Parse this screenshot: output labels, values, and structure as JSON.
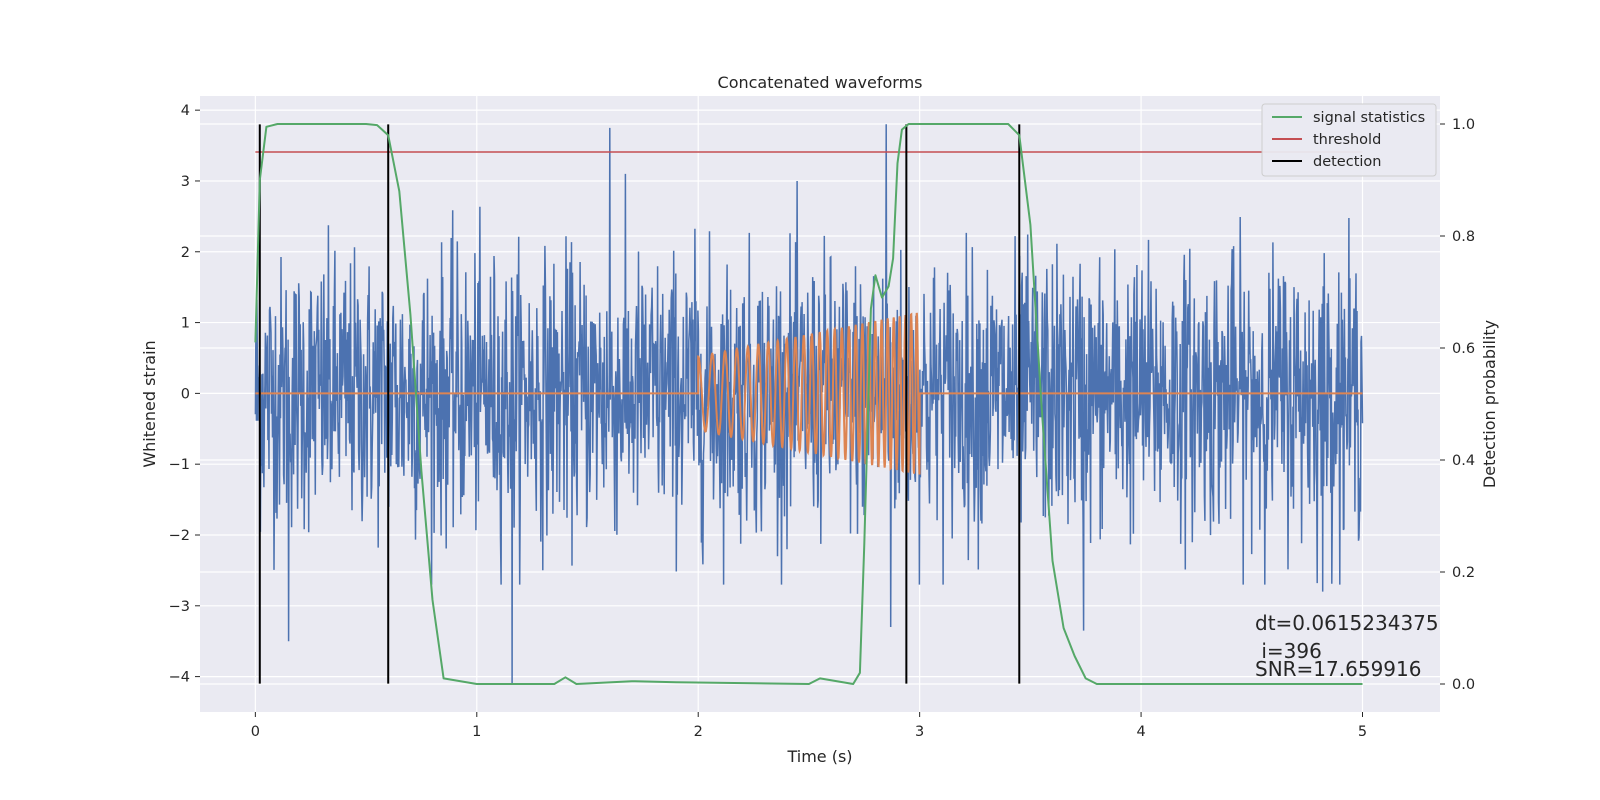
{
  "chart_data": {
    "type": "line",
    "title": "Concatenated waveforms",
    "xlabel": "Time (s)",
    "ylabel": "Whitened strain",
    "y2label": "Detection probability",
    "xlim": [
      -0.25,
      5.35
    ],
    "ylim": [
      -4.5,
      4.2
    ],
    "y2lim": [
      -0.05,
      1.05
    ],
    "xticks": [
      0,
      1,
      2,
      3,
      4,
      5
    ],
    "yticks": [
      -4,
      -3,
      -2,
      -1,
      0,
      1,
      2,
      3,
      4
    ],
    "y2ticks": [
      0.0,
      0.2,
      0.4,
      0.6,
      0.8,
      1.0
    ],
    "grid": true,
    "legend_position": "top-right",
    "legend": [
      {
        "name": "signal statistics",
        "color": "#55a868"
      },
      {
        "name": "threshold",
        "color": "#c44e52"
      },
      {
        "name": "detection",
        "color": "#000000"
      }
    ],
    "series": [
      {
        "name": "strain",
        "axis": "left",
        "color": "#4c72b0",
        "x_range": [
          0,
          5
        ],
        "samples": 2200,
        "std": 0.95,
        "spikes": [
          {
            "x": 1.16,
            "y": -4.1
          },
          {
            "x": 1.6,
            "y": 3.75
          },
          {
            "x": 2.85,
            "y": 3.8
          },
          {
            "x": 2.87,
            "y": -3.3
          },
          {
            "x": 0.15,
            "y": -3.5
          },
          {
            "x": 3.74,
            "y": -3.35
          },
          {
            "x": 4.82,
            "y": -2.8
          }
        ]
      },
      {
        "name": "injected chirp",
        "axis": "left",
        "color": "#dd8452",
        "x": [
          0,
          2,
          2,
          3,
          3,
          5
        ],
        "envelope": {
          "start": 2.0,
          "end": 3.0,
          "amp_start": 0.52,
          "amp_end": 1.15
        },
        "frequency": {
          "start": 15,
          "end": 40
        }
      },
      {
        "name": "signal statistics",
        "axis": "right",
        "color": "#55a868",
        "x": [
          0.0,
          0.02,
          0.05,
          0.1,
          0.5,
          0.55,
          0.6,
          0.65,
          0.7,
          0.75,
          0.8,
          0.85,
          1.0,
          1.35,
          1.4,
          1.45,
          1.7,
          1.9,
          2.5,
          2.55,
          2.7,
          2.73,
          2.75,
          2.78,
          2.8,
          2.83,
          2.86,
          2.88,
          2.9,
          2.92,
          2.95,
          3.0,
          3.4,
          3.45,
          3.5,
          3.55,
          3.6,
          3.65,
          3.7,
          3.75,
          3.8,
          4.0,
          5.0
        ],
        "y": [
          0.61,
          0.9,
          0.995,
          1.0,
          1.0,
          0.998,
          0.98,
          0.88,
          0.66,
          0.38,
          0.15,
          0.01,
          0.0,
          0.0,
          0.012,
          0.0,
          0.005,
          0.003,
          0.0,
          0.01,
          0.0,
          0.02,
          0.25,
          0.67,
          0.73,
          0.69,
          0.71,
          0.76,
          0.93,
          0.99,
          1.0,
          1.0,
          1.0,
          0.98,
          0.82,
          0.5,
          0.22,
          0.1,
          0.05,
          0.01,
          0.0,
          0.0,
          0.0
        ]
      },
      {
        "name": "threshold",
        "axis": "right",
        "color": "#c44e52",
        "x": [
          0,
          5
        ],
        "y": [
          0.95,
          0.95
        ]
      }
    ],
    "detections": [
      0.02,
      0.6,
      2.94,
      3.45
    ],
    "detection_range": [
      -4.1,
      3.8
    ],
    "annotations": {
      "dt": "dt=0.0615234375",
      "i": " i=396",
      "snr": "SNR=17.659916"
    }
  }
}
